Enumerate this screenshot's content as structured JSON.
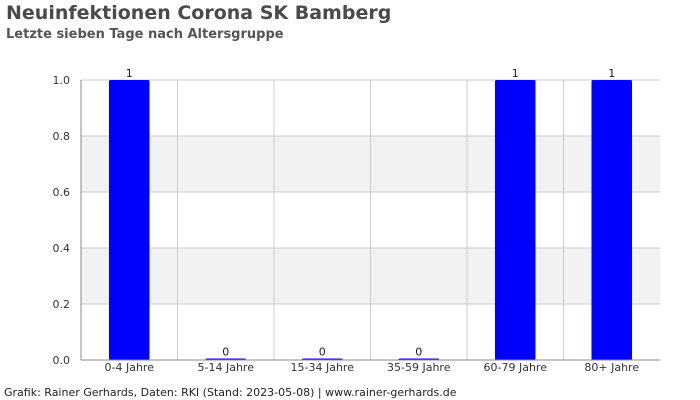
{
  "header": {
    "title": "Neuinfektionen Corona SK Bamberg",
    "subtitle": "Letzte sieben Tage nach Altersgruppe"
  },
  "footer": {
    "text": "Grafik: Rainer Gerhards, Daten: RKI (Stand: 2023-05-08) | www.rainer-gerhards.de"
  },
  "colors": {
    "bar": "#0000ff",
    "band": "#f2f2f2",
    "grid": "#cccccc",
    "axis": "#888888"
  },
  "chart_data": {
    "type": "bar",
    "title": "Neuinfektionen Corona SK Bamberg",
    "subtitle": "Letzte sieben Tage nach Altersgruppe",
    "xlabel": "",
    "ylabel": "",
    "categories": [
      "0-4 Jahre",
      "5-14 Jahre",
      "15-34 Jahre",
      "35-59 Jahre",
      "60-79 Jahre",
      "80+ Jahre"
    ],
    "values": [
      1,
      0,
      0,
      0,
      1,
      1
    ],
    "data_labels": [
      "1",
      "0",
      "0",
      "0",
      "1",
      "1"
    ],
    "ylim": [
      0,
      1.0
    ],
    "yticks": [
      "0.0",
      "0.2",
      "0.4",
      "0.6",
      "0.8",
      "1.0"
    ],
    "grid": true,
    "legend": "none"
  }
}
